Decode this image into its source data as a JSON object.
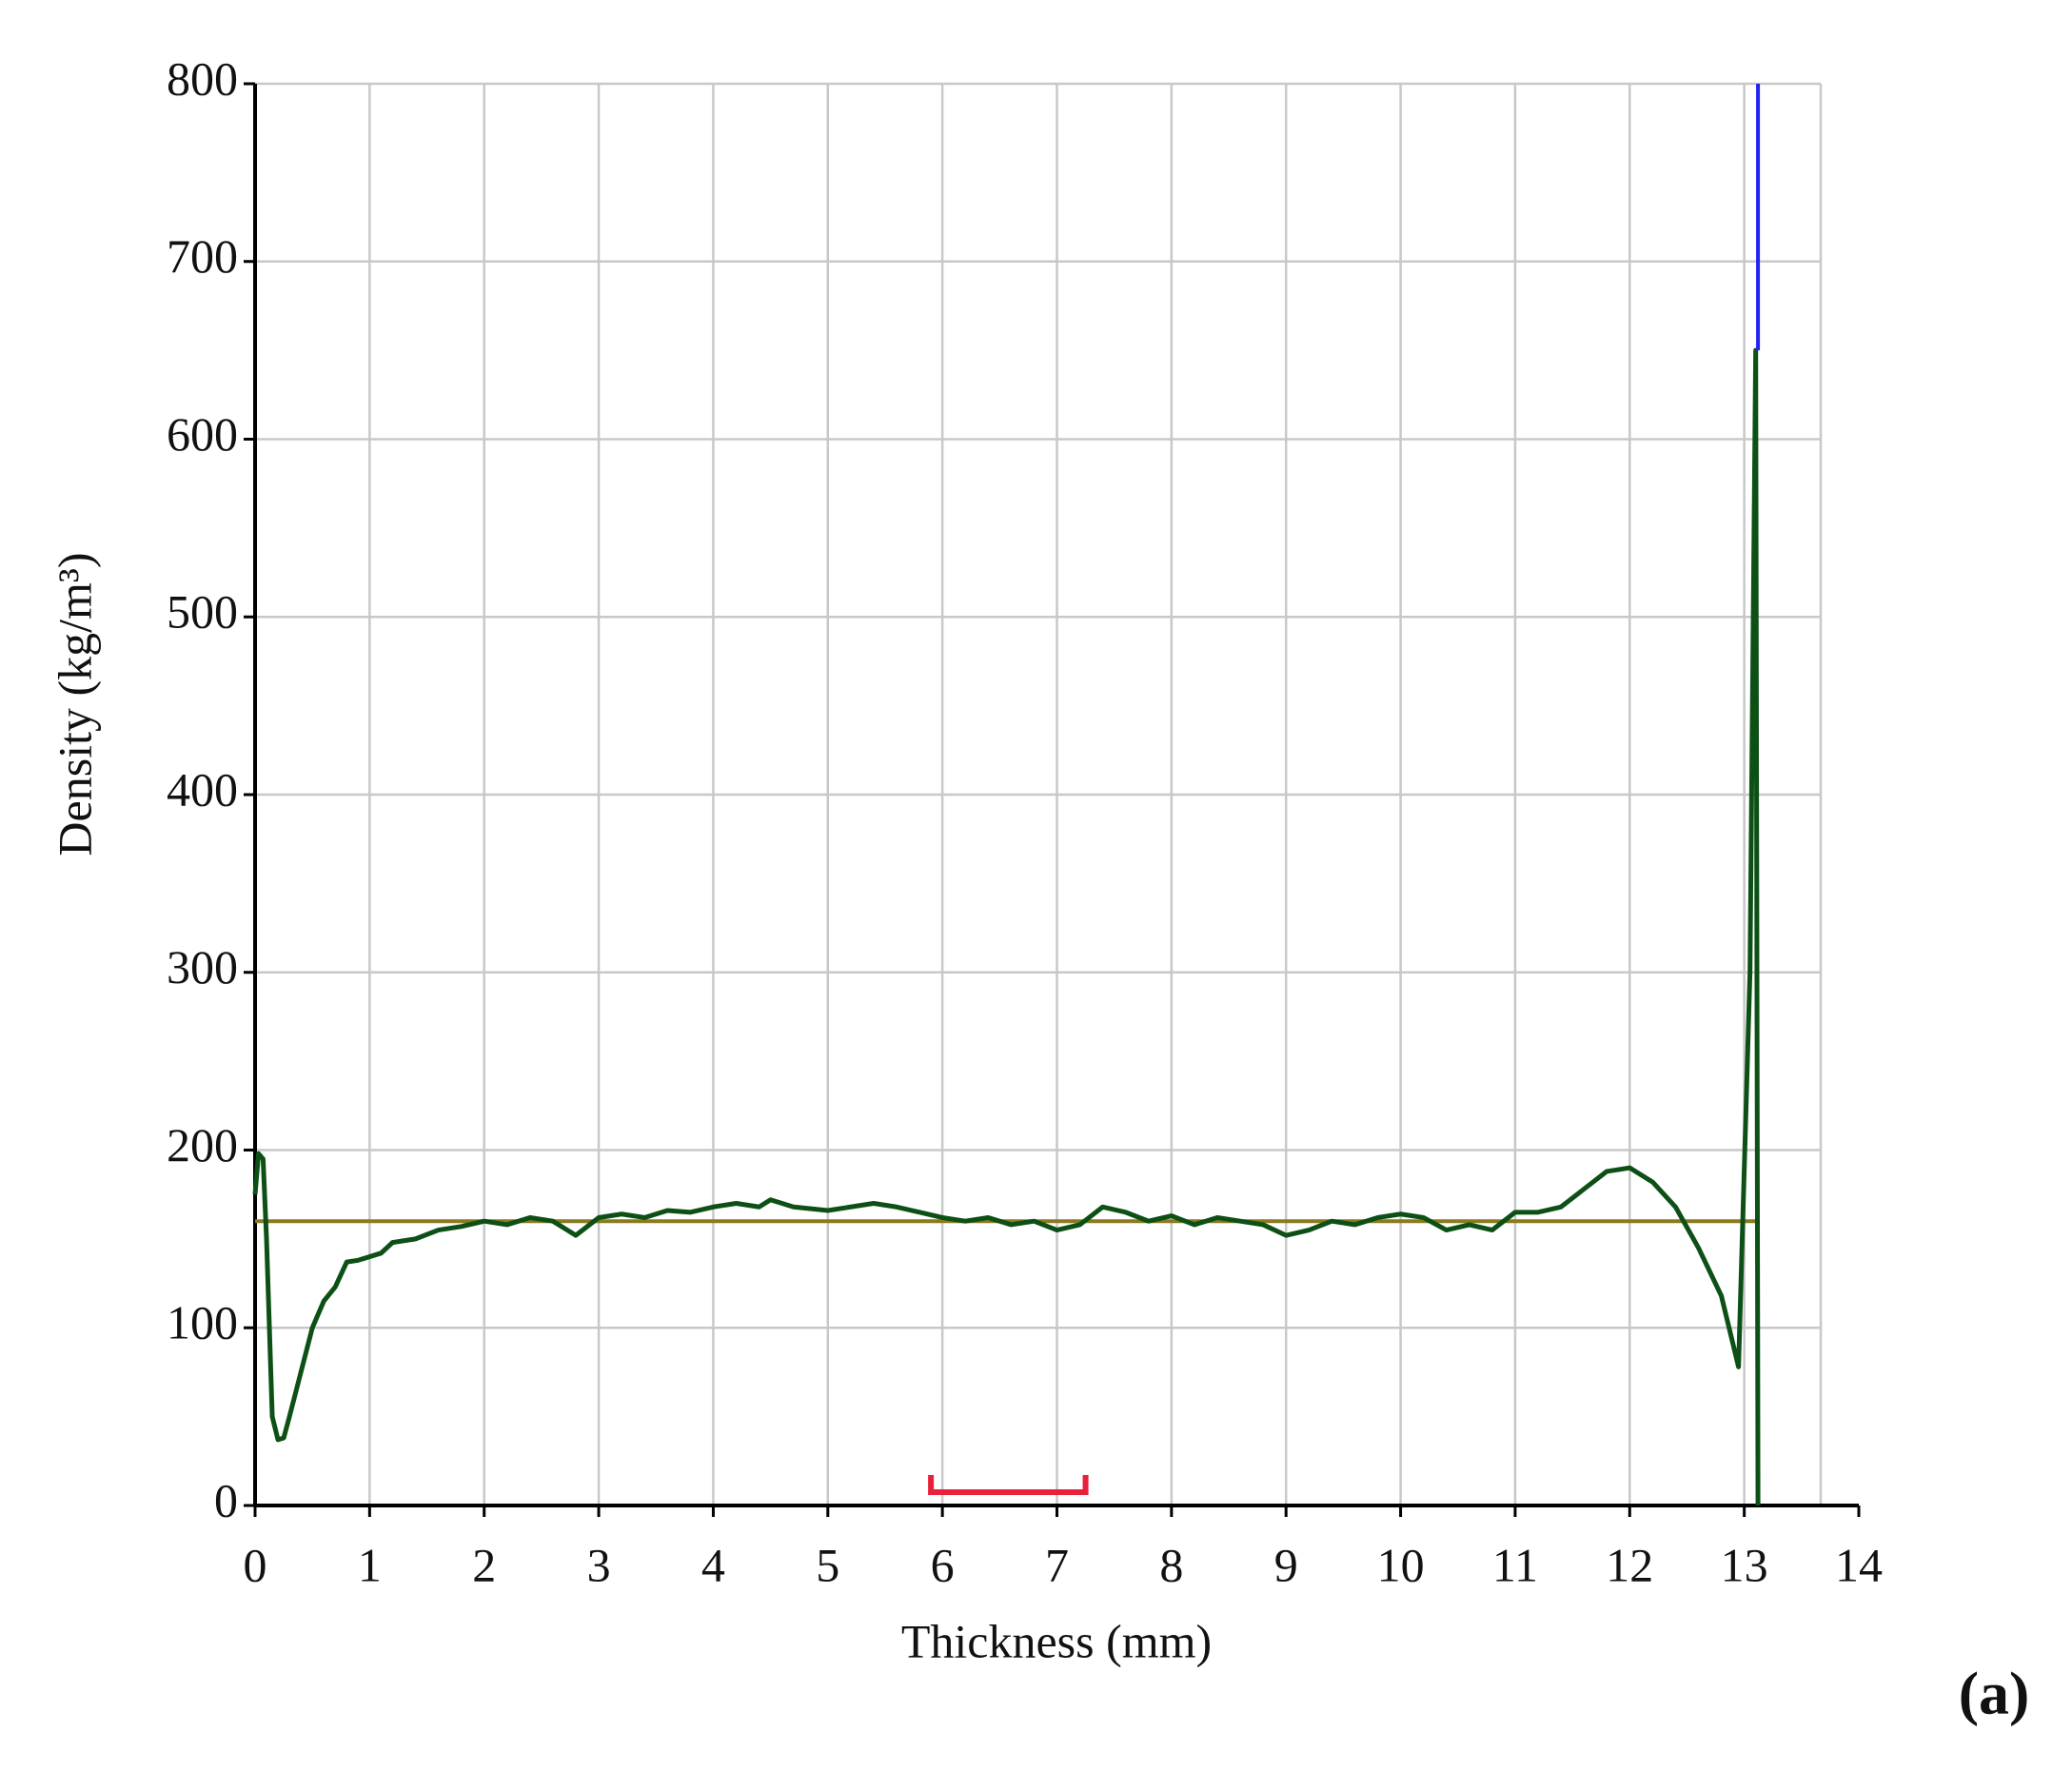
{
  "chart_data": {
    "type": "line",
    "x_label": "Thickness (mm)",
    "y_label": "Density (kg/m³)",
    "panel_label": "(a)",
    "xlim": [
      0,
      14
    ],
    "xticks": [
      0,
      1,
      2,
      3,
      4,
      5,
      6,
      7,
      8,
      9,
      10,
      11,
      12,
      13,
      14
    ],
    "ylim": [
      0,
      800
    ],
    "yticks": [
      0,
      100,
      200,
      300,
      400,
      500,
      600,
      700,
      800
    ],
    "grid": true,
    "series": [
      {
        "color": "#0d5016",
        "x": [
          0.0,
          0.03,
          0.07,
          0.1,
          0.15,
          0.2,
          0.25,
          0.3,
          0.4,
          0.5,
          0.6,
          0.7,
          0.8,
          0.9,
          1.0,
          1.1,
          1.2,
          1.4,
          1.6,
          1.8,
          2.0,
          2.2,
          2.4,
          2.6,
          2.8,
          3.0,
          3.2,
          3.4,
          3.6,
          3.8,
          4.0,
          4.2,
          4.4,
          4.5,
          4.7,
          5.0,
          5.2,
          5.4,
          5.6,
          5.8,
          6.0,
          6.2,
          6.4,
          6.6,
          6.8,
          7.0,
          7.2,
          7.4,
          7.6,
          7.8,
          8.0,
          8.2,
          8.4,
          8.6,
          8.8,
          9.0,
          9.2,
          9.4,
          9.6,
          9.8,
          10.0,
          10.2,
          10.4,
          10.6,
          10.8,
          11.0,
          11.2,
          11.4,
          11.6,
          11.8,
          12.0,
          12.2,
          12.4,
          12.6,
          12.8,
          12.95,
          13.05,
          13.1,
          13.12
        ],
        "values": [
          175,
          198,
          195,
          150,
          50,
          37,
          38,
          50,
          75,
          100,
          115,
          123,
          137,
          138,
          140,
          142,
          148,
          150,
          155,
          157,
          160,
          158,
          162,
          160,
          152,
          162,
          164,
          162,
          166,
          165,
          168,
          170,
          168,
          172,
          168,
          166,
          168,
          170,
          168,
          165,
          162,
          160,
          162,
          158,
          160,
          155,
          158,
          168,
          165,
          160,
          163,
          158,
          162,
          160,
          158,
          152,
          155,
          160,
          158,
          162,
          164,
          162,
          155,
          158,
          155,
          165,
          165,
          168,
          178,
          188,
          190,
          182,
          168,
          145,
          118,
          78,
          300,
          650,
          0
        ]
      },
      {
        "color": "#8b7a1e",
        "x": [
          0,
          13.1
        ],
        "values": [
          160,
          160
        ]
      },
      {
        "color": "#2323f0",
        "x": [
          13.12,
          13.12
        ],
        "values": [
          650,
          800
        ]
      }
    ],
    "bracket": {
      "x": [
        5.9,
        7.25
      ],
      "color": "#e8203a"
    }
  }
}
